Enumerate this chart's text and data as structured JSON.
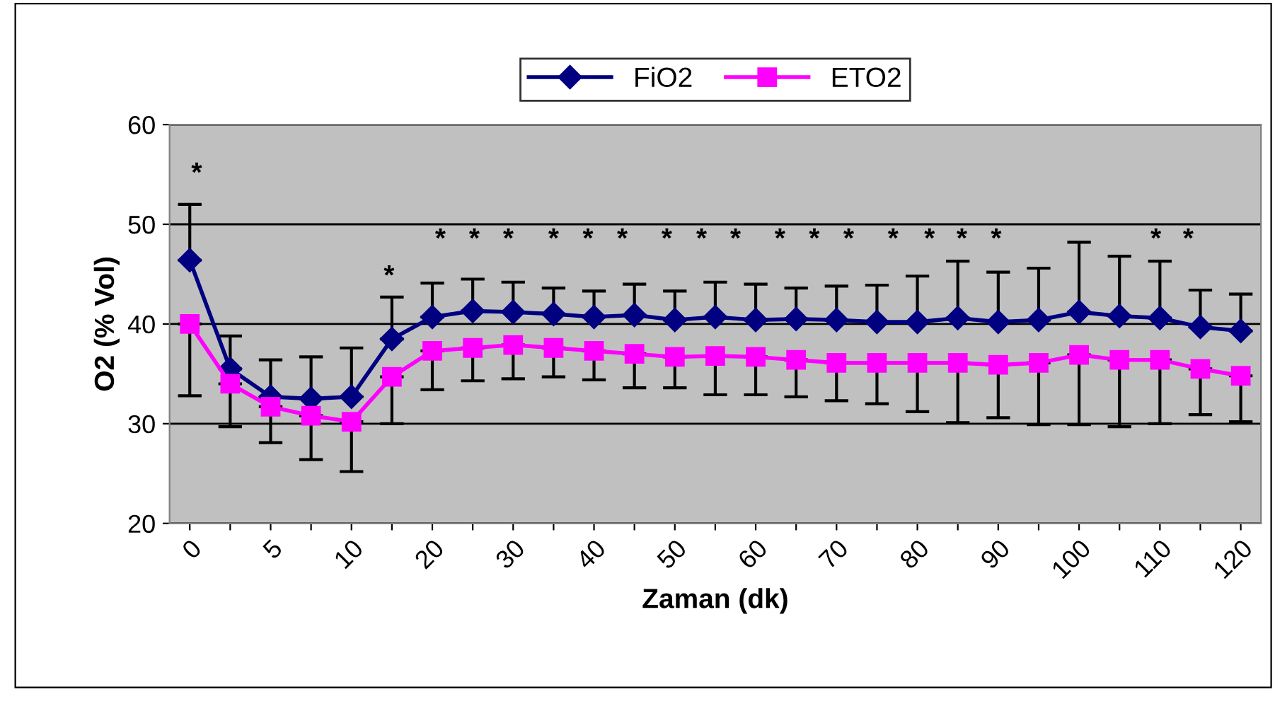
{
  "chart_data": {
    "type": "line",
    "xlabel": "Zaman (dk)",
    "ylabel": "O2 (% Vol)",
    "categories": [
      "0",
      null,
      "5",
      null,
      "10",
      null,
      "20",
      null,
      "30",
      null,
      "40",
      null,
      "50",
      null,
      "60",
      null,
      "70",
      null,
      "80",
      null,
      "90",
      null,
      "100",
      null,
      "110",
      null,
      "120"
    ],
    "series": [
      {
        "name": "FiO2",
        "color": "#000080",
        "marker": "diamond",
        "values": [
          46.4,
          35.5,
          32.7,
          32.5,
          32.7,
          38.5,
          40.7,
          41.3,
          41.2,
          41.0,
          40.7,
          40.9,
          40.4,
          40.7,
          40.4,
          40.5,
          40.4,
          40.2,
          40.2,
          40.6,
          40.2,
          40.4,
          41.2,
          40.8,
          40.6,
          39.7,
          39.3
        ],
        "errors": [
          [
            46.4,
            52.0
          ],
          [
            35.5,
            38.8
          ],
          [
            32.7,
            36.4
          ],
          [
            32.5,
            36.7
          ],
          [
            32.7,
            37.6
          ],
          [
            38.5,
            42.7
          ],
          [
            40.7,
            44.1
          ],
          [
            41.3,
            44.5
          ],
          [
            41.2,
            44.2
          ],
          [
            41.0,
            43.6
          ],
          [
            40.7,
            43.3
          ],
          [
            40.9,
            44.0
          ],
          [
            40.4,
            43.3
          ],
          [
            40.7,
            44.2
          ],
          [
            40.4,
            44.0
          ],
          [
            40.5,
            43.6
          ],
          [
            40.4,
            43.8
          ],
          [
            40.2,
            43.9
          ],
          [
            40.2,
            44.8
          ],
          [
            40.6,
            46.3
          ],
          [
            40.2,
            45.2
          ],
          [
            40.4,
            45.6
          ],
          [
            41.2,
            48.2
          ],
          [
            40.8,
            46.8
          ],
          [
            40.6,
            46.3
          ],
          [
            39.7,
            43.4
          ],
          [
            39.3,
            43.0
          ]
        ]
      },
      {
        "name": "ETO2",
        "color": "#ff00ff",
        "marker": "square",
        "values": [
          40.0,
          34.0,
          31.7,
          30.8,
          30.2,
          34.7,
          37.3,
          37.6,
          37.9,
          37.6,
          37.3,
          37.0,
          36.7,
          36.8,
          36.7,
          36.4,
          36.1,
          36.1,
          36.1,
          36.1,
          35.9,
          36.1,
          36.9,
          36.4,
          36.4,
          35.5,
          34.8
        ],
        "errors": [
          [
            32.8,
            40.0
          ],
          [
            29.7,
            34.0
          ],
          [
            28.1,
            31.7
          ],
          [
            26.4,
            30.8
          ],
          [
            25.2,
            30.2
          ],
          [
            30.0,
            34.7
          ],
          [
            33.4,
            37.3
          ],
          [
            34.3,
            37.6
          ],
          [
            34.5,
            37.9
          ],
          [
            34.7,
            37.6
          ],
          [
            34.4,
            37.3
          ],
          [
            33.6,
            37.0
          ],
          [
            33.6,
            36.7
          ],
          [
            32.9,
            36.8
          ],
          [
            32.9,
            36.7
          ],
          [
            32.7,
            36.4
          ],
          [
            32.3,
            36.1
          ],
          [
            32.0,
            36.1
          ],
          [
            31.2,
            36.1
          ],
          [
            30.1,
            36.1
          ],
          [
            30.6,
            35.9
          ],
          [
            29.9,
            36.1
          ],
          [
            29.9,
            36.9
          ],
          [
            29.7,
            36.4
          ],
          [
            30.0,
            36.4
          ],
          [
            30.9,
            35.5
          ],
          [
            30.2,
            34.8
          ]
        ]
      }
    ],
    "ylim": [
      20,
      60
    ],
    "yticks": [
      20,
      30,
      40,
      50,
      60
    ],
    "grid": "y",
    "legend": "top",
    "annotations": [
      "*",
      "*",
      "*",
      "*",
      "*",
      "*",
      "*",
      "*",
      "*",
      "*",
      "*",
      "*",
      "*",
      "*",
      "*",
      "*",
      "*",
      "*",
      "*",
      "*"
    ]
  }
}
